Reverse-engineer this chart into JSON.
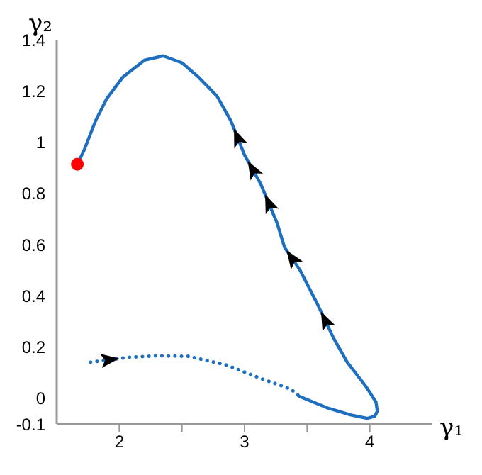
{
  "chart_data": {
    "type": "line",
    "xlabel": "γ₁",
    "ylabel": "γ₂",
    "xlim": [
      1.5,
      4.5
    ],
    "xticks": [
      2,
      {
        "value": 2.5,
        "label": null
      },
      3,
      {
        "value": 3.5,
        "label": null
      },
      4
    ],
    "ylim": [
      -0.1,
      1.4
    ],
    "yticks": [
      -0.1,
      0,
      0.2,
      0.4,
      0.6,
      0.8,
      1,
      1.2,
      1.4
    ],
    "series": [
      {
        "color": "#1f6fc0",
        "line_style": "dotted",
        "marker": "none",
        "x": [
          1.77,
          2.07,
          2.29,
          2.55,
          2.85,
          3.15,
          3.37,
          3.44
        ],
        "values": [
          0.141,
          0.16,
          0.166,
          0.164,
          0.131,
          0.074,
          0.036,
          0.007
        ]
      },
      {
        "color": "#1f6fc0",
        "line_style": "solid",
        "marker": "none",
        "x": [
          3.44,
          3.67,
          3.85,
          3.98,
          4.04,
          4.06,
          4.05,
          3.97,
          3.82,
          3.71,
          3.58,
          3.44,
          3.32,
          3.26,
          3.13,
          3.0,
          2.89,
          2.78,
          2.63,
          2.5,
          2.35,
          2.2,
          2.03,
          1.9,
          1.81,
          1.72,
          1.665
        ],
        "values": [
          0.007,
          -0.039,
          -0.065,
          -0.078,
          -0.07,
          -0.05,
          -0.015,
          0.046,
          0.141,
          0.236,
          0.37,
          0.503,
          0.589,
          0.684,
          0.836,
          0.95,
          1.084,
          1.18,
          1.255,
          1.31,
          1.337,
          1.32,
          1.255,
          1.17,
          1.083,
          0.97,
          0.914
        ]
      },
      {
        "type": "scatter",
        "color": "#ff0000",
        "marker": "circle",
        "x": [
          1.665
        ],
        "values": [
          0.914
        ]
      }
    ]
  }
}
